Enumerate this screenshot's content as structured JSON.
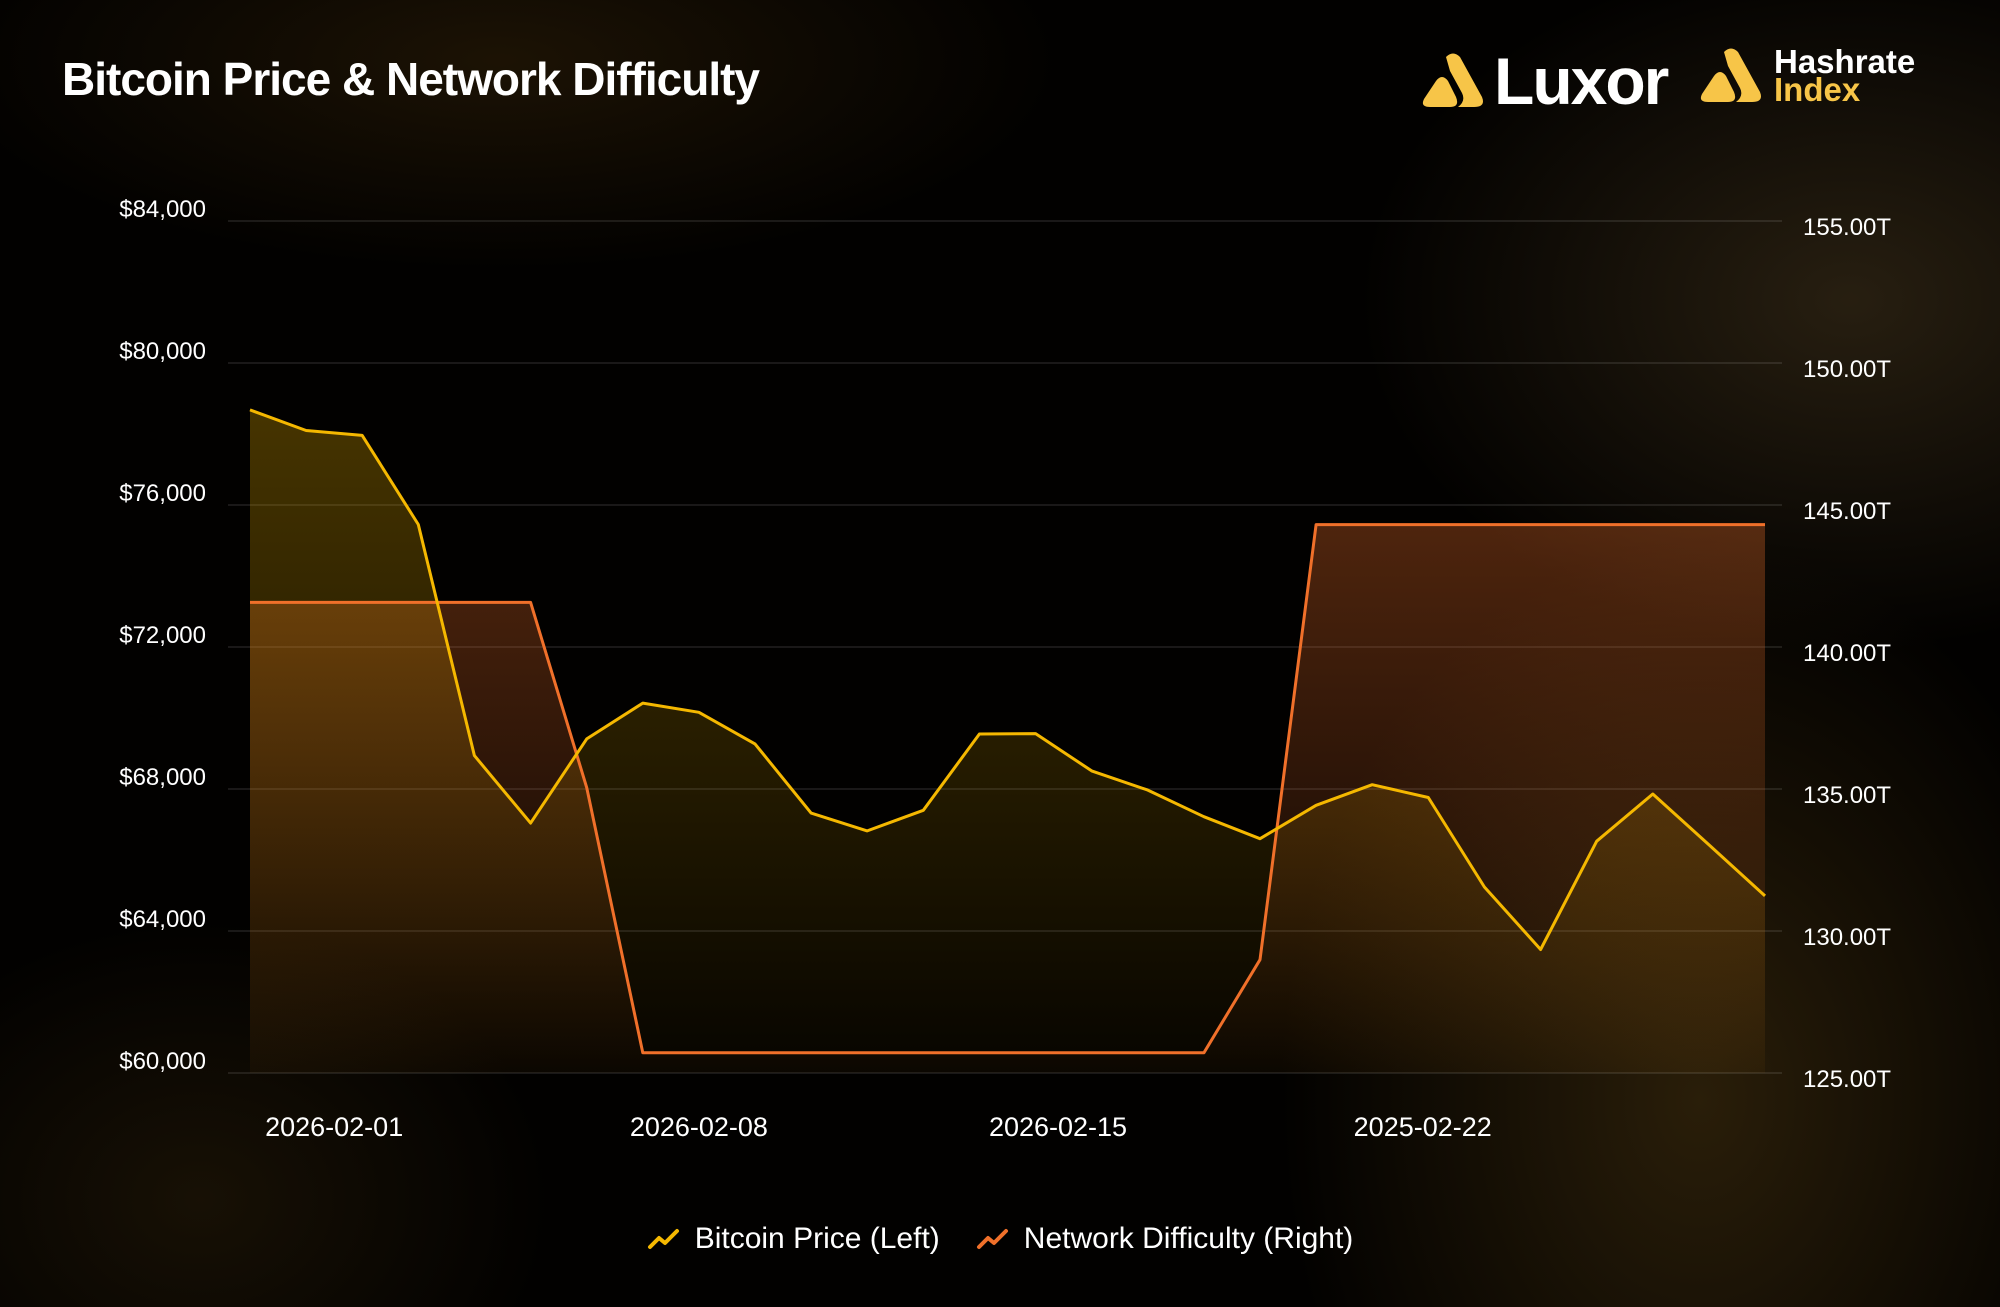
{
  "header": {
    "title": "Bitcoin Price & Network Difficulty"
  },
  "logos": {
    "luxor": "Luxor",
    "hashrate_line1": "Hashrate",
    "hashrate_line2": "Index"
  },
  "colors": {
    "price": "#f5b800",
    "difficulty": "#f0702a",
    "accent": "#f7c548"
  },
  "chart_data": {
    "type": "line",
    "title": "Bitcoin Price & Network Difficulty",
    "x_ticks": [
      {
        "label": "2026-02-01",
        "at": 1.5
      },
      {
        "label": "2026-02-08",
        "at": 8
      },
      {
        "label": "2026-02-15",
        "at": 14.4
      },
      {
        "label": "2025-02-22",
        "at": 20.9
      }
    ],
    "left_axis": {
      "ylim": [
        60000,
        84000
      ],
      "ticks": [
        "$60,000",
        "$64,000",
        "$68,000",
        "$72,000",
        "$76,000",
        "$80,000",
        "$84,000"
      ],
      "tick_values": [
        60000,
        64000,
        68000,
        72000,
        76000,
        80000,
        84000
      ]
    },
    "right_axis": {
      "ylim": [
        125,
        155
      ],
      "ticks": [
        "125.00T",
        "130.00T",
        "135.00T",
        "140.00T",
        "145.00T",
        "150.00T",
        "155.00T"
      ],
      "tick_values": [
        125,
        130,
        135,
        140,
        145,
        150,
        155
      ]
    },
    "series": [
      {
        "name": "Bitcoin Price (Left)",
        "axis": "left",
        "values": [
          78680,
          78100,
          77960,
          75450,
          68940,
          67040,
          69410,
          70420,
          70160,
          69270,
          67320,
          66820,
          67400,
          69550,
          69560,
          68510,
          67970,
          67220,
          66600,
          67540,
          68120,
          67760,
          65240,
          63480,
          66530,
          67860,
          66430,
          64990
        ]
      },
      {
        "name": "Network Difficulty (Right)",
        "axis": "right",
        "values": [
          141.57,
          141.57,
          141.57,
          141.57,
          141.57,
          141.57,
          135.05,
          125.71,
          125.71,
          125.71,
          125.71,
          125.71,
          125.71,
          125.71,
          125.71,
          125.71,
          125.71,
          125.71,
          128.99,
          144.31,
          144.31,
          144.31,
          144.31,
          144.31,
          144.31,
          144.31,
          144.31,
          144.31
        ]
      }
    ],
    "grid": true,
    "legend": "bottom-center"
  }
}
